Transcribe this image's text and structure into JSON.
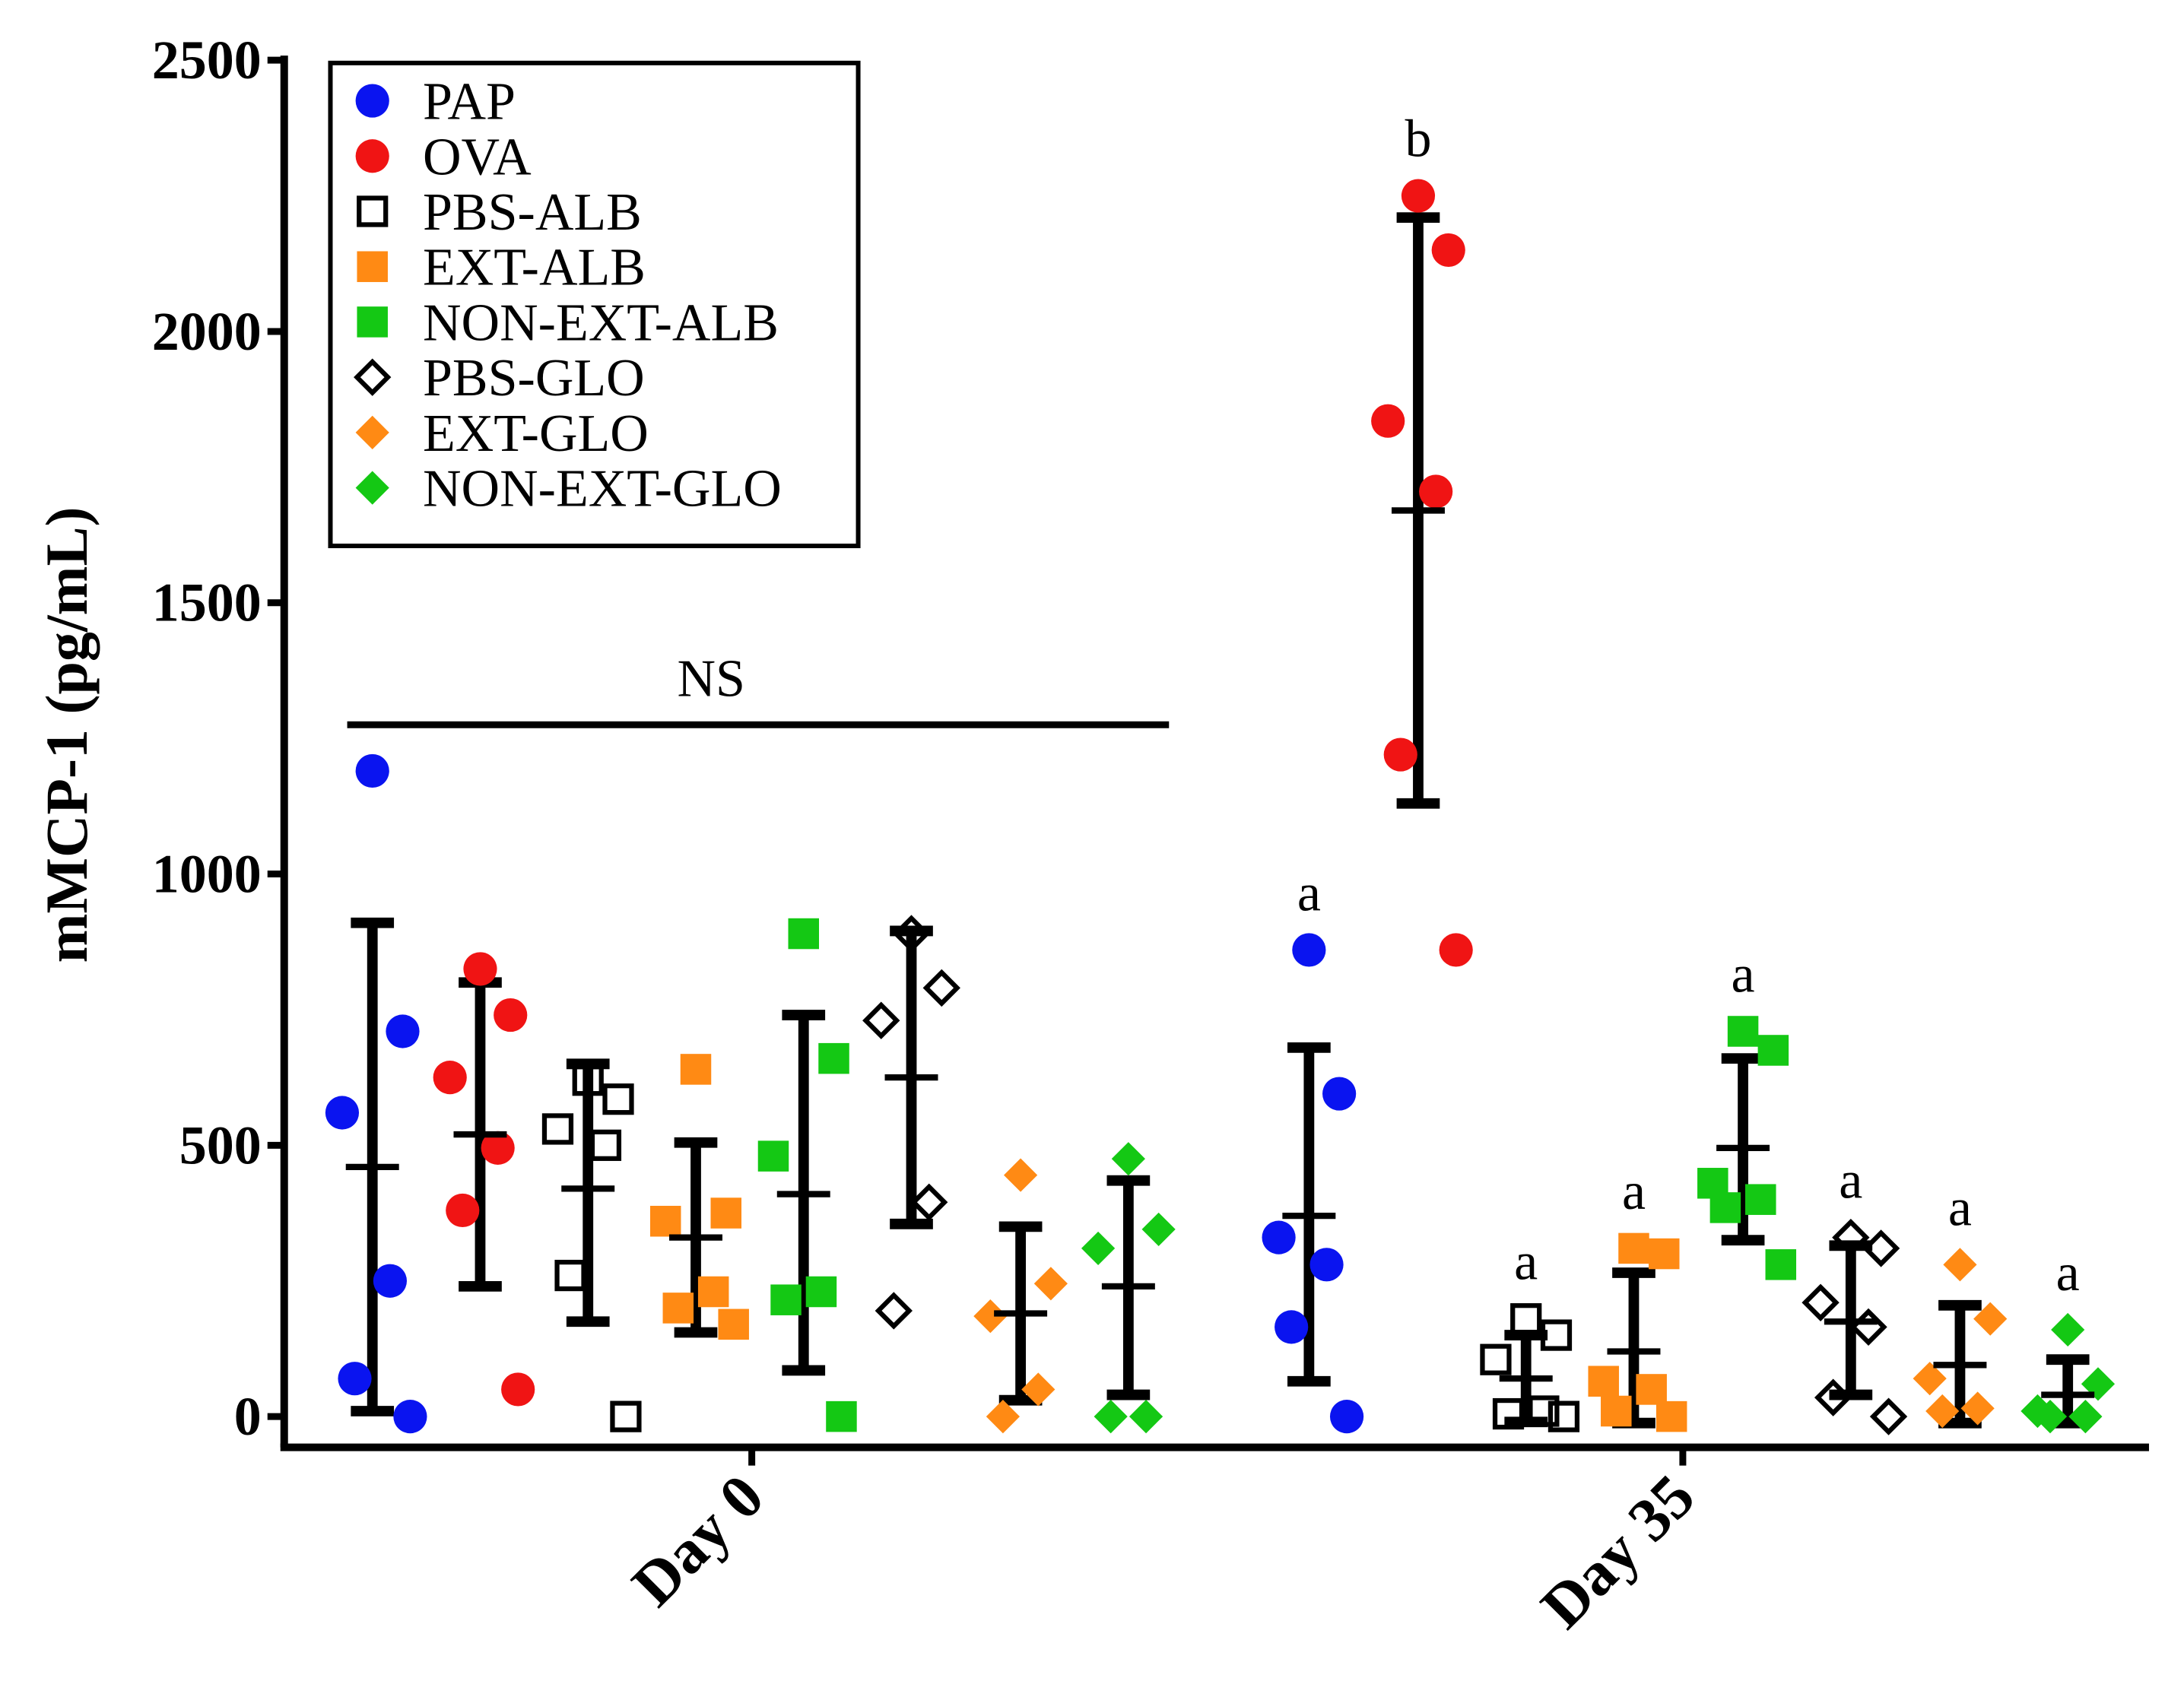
{
  "chart_data": {
    "type": "scatter",
    "ylabel": "mMCP-1 (pg/mL)",
    "xlabel": "",
    "ylim": [
      0,
      2500
    ],
    "yticks": [
      0,
      500,
      1000,
      1500,
      2000,
      2500
    ],
    "categories": [
      "Day 0",
      "Day 35"
    ],
    "grid": false,
    "legend_position": "top-left",
    "series": [
      {
        "name": "PAP",
        "marker": "circle",
        "filled": true,
        "color": "#0a14f0",
        "day0": {
          "values": [
            1190,
            710,
            560,
            250,
            70,
            0
          ],
          "mean": 460,
          "sd_low": 10,
          "sd_high": 910
        },
        "day35": {
          "values": [
            860,
            595,
            330,
            280,
            165,
            0
          ],
          "mean": 370,
          "sd_low": 65,
          "sd_high": 680
        }
      },
      {
        "name": "OVA",
        "marker": "circle",
        "filled": true,
        "color": "#f01414",
        "day0": {
          "values": [
            825,
            740,
            625,
            495,
            380,
            50
          ],
          "mean": 520,
          "sd_low": 240,
          "sd_high": 800
        },
        "day35": {
          "values": [
            2250,
            2150,
            1835,
            1705,
            1220,
            860
          ],
          "mean": 1670,
          "sd_low": 1130,
          "sd_high": 2210
        }
      },
      {
        "name": "PBS-ALB",
        "marker": "square",
        "filled": false,
        "color": "#000000",
        "day0": {
          "values": [
            620,
            585,
            530,
            500,
            260,
            0
          ],
          "mean": 420,
          "sd_low": 175,
          "sd_high": 650
        },
        "day35": {
          "values": [
            180,
            150,
            105,
            10,
            5,
            0
          ],
          "mean": 70,
          "sd_low": -10,
          "sd_high": 150
        }
      },
      {
        "name": "EXT-ALB",
        "marker": "square",
        "filled": true,
        "color": "#ff8a14",
        "day0": {
          "values": [
            640,
            375,
            360,
            230,
            200,
            170
          ],
          "mean": 330,
          "sd_low": 155,
          "sd_high": 505
        },
        "day35": {
          "values": [
            310,
            300,
            65,
            50,
            10,
            0
          ],
          "mean": 120,
          "sd_low": -20,
          "sd_high": 265
        }
      },
      {
        "name": "NON-EXT-ALB",
        "marker": "square",
        "filled": true,
        "color": "#14c814",
        "day0": {
          "values": [
            890,
            660,
            480,
            230,
            215,
            0
          ],
          "mean": 410,
          "sd_low": 85,
          "sd_high": 740
        },
        "day35": {
          "values": [
            710,
            675,
            430,
            400,
            385,
            280
          ],
          "mean": 495,
          "sd_low": 325,
          "sd_high": 660
        }
      },
      {
        "name": "PBS-GLO",
        "marker": "diamond",
        "filled": false,
        "color": "#000000",
        "day0": {
          "values": [
            890,
            790,
            730,
            395,
            195
          ],
          "mean": 625,
          "sd_low": 355,
          "sd_high": 895
        },
        "day35": {
          "values": [
            330,
            310,
            210,
            165,
            35,
            0
          ],
          "mean": 175,
          "sd_low": 40,
          "sd_high": 315
        }
      },
      {
        "name": "EXT-GLO",
        "marker": "diamond",
        "filled": true,
        "color": "#ff8a14",
        "day0": {
          "values": [
            445,
            245,
            185,
            50,
            0
          ],
          "mean": 190,
          "sd_low": 30,
          "sd_high": 350
        },
        "day35": {
          "values": [
            280,
            180,
            70,
            15,
            10
          ],
          "mean": 95,
          "sd_low": -20,
          "sd_high": 205
        }
      },
      {
        "name": "NON-EXT-GLO",
        "marker": "diamond",
        "filled": true,
        "color": "#14c814",
        "day0": {
          "values": [
            475,
            345,
            310,
            0,
            0
          ],
          "mean": 240,
          "sd_low": 40,
          "sd_high": 435
        },
        "day35": {
          "values": [
            160,
            60,
            10,
            0,
            0
          ],
          "mean": 40,
          "sd_low": -20,
          "sd_high": 105
        }
      }
    ],
    "annotations": {
      "ns_label": "NS",
      "day35_letters": [
        "a",
        "b",
        "a",
        "a",
        "a",
        "a",
        "a",
        "a"
      ]
    }
  }
}
